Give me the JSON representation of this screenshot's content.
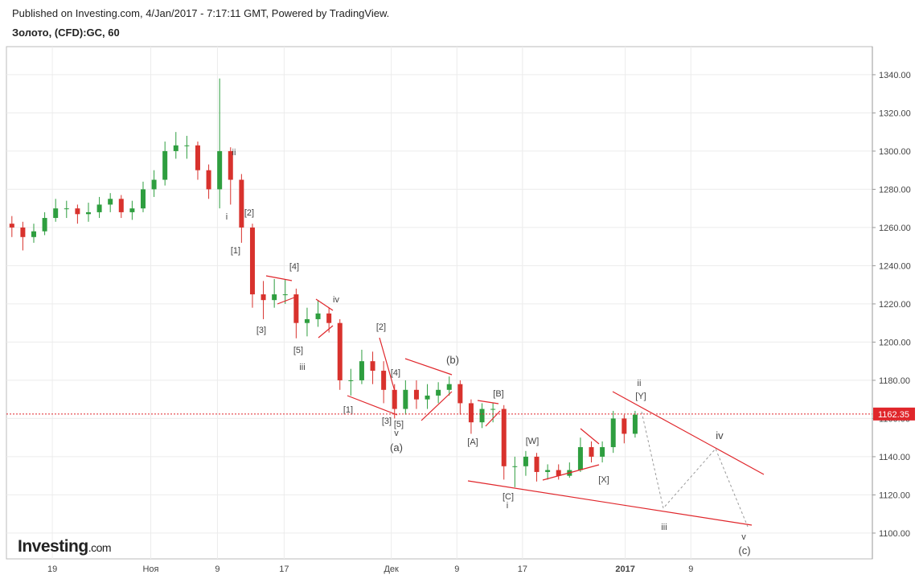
{
  "header": {
    "published": "Published on Investing.com, 4/Jan/2017 - 7:17:11 GMT, Powered by TradingView.",
    "symbol": "Золото, (CFD):GC, 60"
  },
  "logo": {
    "name": "Investing",
    "suffix": ".com"
  },
  "chart_data": {
    "type": "candlestick",
    "xlim": [
      0,
      79.2
    ],
    "xticks": [
      {
        "value": 4.2,
        "label": "19"
      },
      {
        "value": 13.2,
        "label": "Ноя"
      },
      {
        "value": 19.3,
        "label": "9"
      },
      {
        "value": 25.4,
        "label": "17"
      },
      {
        "value": 35.2,
        "label": "Дек"
      },
      {
        "value": 41.2,
        "label": "9"
      },
      {
        "value": 47.2,
        "label": "17"
      },
      {
        "value": 56.6,
        "label": "2017"
      },
      {
        "value": 62.6,
        "label": "9"
      }
    ],
    "ylim": [
      1086.5,
      1354.7
    ],
    "yticks": [
      {
        "value": 1100,
        "label": "1100.00"
      },
      {
        "value": 1120,
        "label": "1120.00"
      },
      {
        "value": 1140,
        "label": "1140.00"
      },
      {
        "value": 1160,
        "label": "1160.00"
      },
      {
        "value": 1180,
        "label": "1180.00"
      },
      {
        "value": 1200,
        "label": "1200.00"
      },
      {
        "value": 1220,
        "label": "1220.00"
      },
      {
        "value": 1240,
        "label": "1240.00"
      },
      {
        "value": 1260,
        "label": "1260.00"
      },
      {
        "value": 1280,
        "label": "1280.00"
      },
      {
        "value": 1300,
        "label": "1300.00"
      },
      {
        "value": 1320,
        "label": "1320.00"
      },
      {
        "value": 1340,
        "label": "1340.00"
      }
    ],
    "grid": true,
    "up_color": "#2e9e3f",
    "down_color": "#d8322d",
    "last_price": {
      "value": 1162.35,
      "label": "1162.35"
    },
    "open": [
      1262,
      1260,
      1255,
      1258,
      1265,
      1270,
      1270,
      1267,
      1268,
      1272,
      1275,
      1268,
      1270,
      1280,
      1285,
      1300,
      1303,
      1303,
      1290,
      1280,
      1300,
      1285,
      1260,
      1225,
      1222,
      1225,
      1225,
      1210,
      1212,
      1215,
      1210,
      1180,
      1180,
      1190,
      1185,
      1175,
      1165,
      1175,
      1170,
      1172,
      1175,
      1178,
      1168,
      1158,
      1165,
      1165,
      1135,
      1135,
      1140,
      1132,
      1133,
      1130,
      1133,
      1145,
      1140,
      1145,
      1160,
      1152
    ],
    "high": [
      1266,
      1263,
      1262,
      1268,
      1275,
      1274,
      1272,
      1273,
      1276,
      1278,
      1277,
      1274,
      1284,
      1290,
      1305,
      1310,
      1308,
      1305,
      1293,
      1338,
      1302,
      1288,
      1262,
      1232,
      1233,
      1233,
      1228,
      1218,
      1222,
      1218,
      1212,
      1186,
      1196,
      1195,
      1190,
      1178,
      1180,
      1180,
      1178,
      1179,
      1182,
      1180,
      1170,
      1168,
      1168,
      1167,
      1140,
      1143,
      1142,
      1136,
      1136,
      1137,
      1150,
      1148,
      1148,
      1164,
      1162,
      1164
    ],
    "low": [
      1255,
      1248,
      1252,
      1256,
      1263,
      1265,
      1262,
      1263,
      1265,
      1268,
      1265,
      1264,
      1268,
      1276,
      1282,
      1296,
      1296,
      1285,
      1275,
      1270,
      1272,
      1252,
      1218,
      1212,
      1218,
      1220,
      1202,
      1203,
      1208,
      1205,
      1175,
      1172,
      1178,
      1178,
      1168,
      1160,
      1162,
      1165,
      1165,
      1168,
      1172,
      1162,
      1152,
      1155,
      1158,
      1128,
      1124,
      1130,
      1127,
      1128,
      1128,
      1129,
      1132,
      1137,
      1137,
      1142,
      1147,
      1150
    ],
    "close": [
      1260,
      1255,
      1258,
      1265,
      1270,
      1270,
      1267,
      1268,
      1272,
      1275,
      1268,
      1270,
      1280,
      1285,
      1300,
      1303,
      1303,
      1290,
      1280,
      1300,
      1285,
      1260,
      1225,
      1222,
      1225,
      1225,
      1210,
      1212,
      1215,
      1210,
      1180,
      1180,
      1190,
      1185,
      1175,
      1165,
      1175,
      1170,
      1172,
      1175,
      1178,
      1168,
      1158,
      1165,
      1165,
      1135,
      1135,
      1140,
      1132,
      1133,
      1130,
      1133,
      1145,
      1140,
      1145,
      1160,
      1152,
      1162
    ],
    "annotations": [
      "ii",
      "i",
      "[2]",
      "[1]",
      "[4]",
      "iv",
      "[3]",
      "[5]",
      "iii",
      "[2]",
      "[4]",
      "[1]",
      "[3]",
      "[5]",
      "v",
      "(a)",
      "(b)",
      "[B]",
      "[A]",
      "[W]",
      "[X]",
      "[C]",
      "i",
      "ii",
      "[Y]",
      "iv",
      "iii",
      "v",
      "(c)"
    ]
  }
}
